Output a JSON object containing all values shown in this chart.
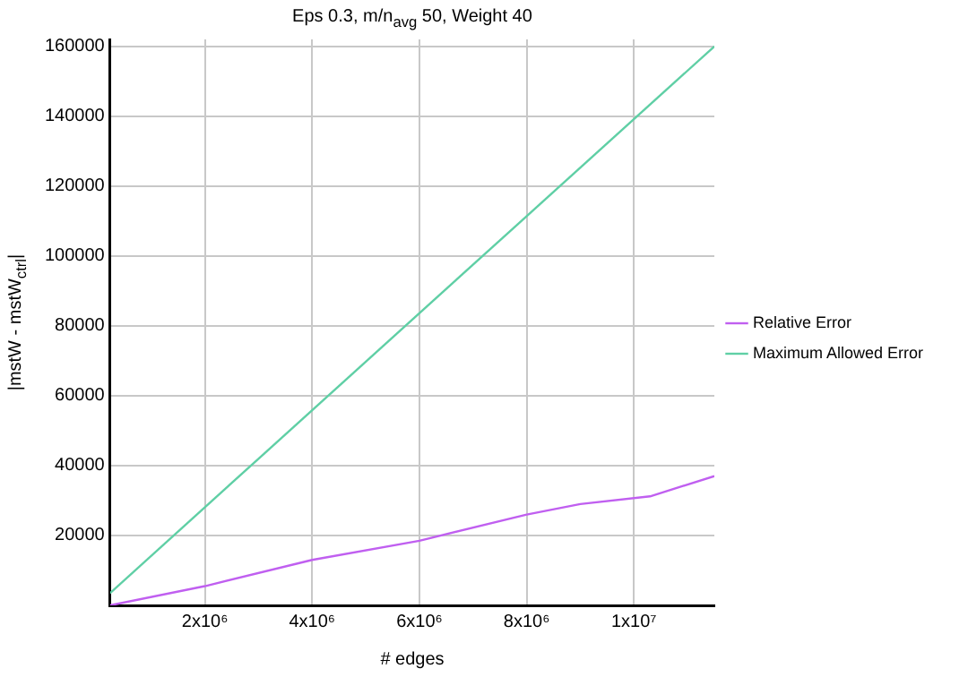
{
  "chart_data": {
    "type": "line",
    "title": "Eps 0.3, m/n$_{avg}$ 50, Weight 40",
    "xlabel": "# edges",
    "ylabel": "|mstW - mstW$_{ctrl}$|",
    "series": [
      {
        "name": "Relative Error",
        "color": "#c05ff0",
        "x": [
          230000,
          2000000,
          4000000,
          6000000,
          8000000,
          9000000,
          10300000,
          11500000
        ],
        "values": [
          0,
          5500,
          13000,
          18500,
          26000,
          29000,
          31200,
          37000
        ]
      },
      {
        "name": "Maximum Allowed Error",
        "color": "#5fcfa5",
        "x": [
          230000,
          11500000
        ],
        "values": [
          3500,
          160000
        ]
      }
    ],
    "xlim": [
      230000,
      11500000
    ],
    "ylim": [
      0,
      162000
    ],
    "xticks": [
      {
        "value": 2000000,
        "label": "2x10⁶"
      },
      {
        "value": 4000000,
        "label": "4x10⁶"
      },
      {
        "value": 6000000,
        "label": "6x10⁶"
      },
      {
        "value": 8000000,
        "label": "8x10⁶"
      },
      {
        "value": 10000000,
        "label": "1x10⁷"
      }
    ],
    "yticks": [
      20000,
      40000,
      60000,
      80000,
      100000,
      120000,
      140000,
      160000
    ],
    "grid": true,
    "legend": "right",
    "line_style": "solid",
    "marker": "none"
  }
}
